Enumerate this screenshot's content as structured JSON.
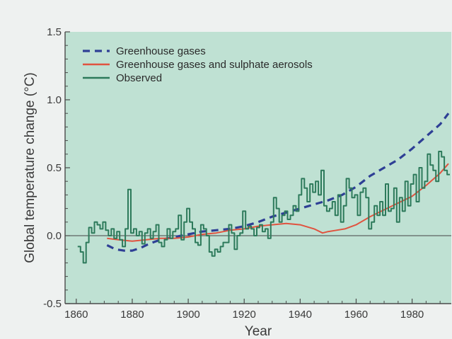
{
  "colors": {
    "plot_bg": "#bfe1d3",
    "page_bg": "#eef1f0",
    "greenhouse": "#2e3f95",
    "aerosols": "#e0533f",
    "observed": "#2d7a5b",
    "axis": "#4a4a4a"
  },
  "chart_data": {
    "type": "line",
    "title": "",
    "xlabel": "Year",
    "ylabel": "Global temperature change (°C)",
    "xlim": [
      1856,
      1994
    ],
    "ylim": [
      -0.5,
      1.5
    ],
    "xticks": [
      {
        "value": 1860,
        "label": "1860"
      },
      {
        "value": 1880,
        "label": "1880"
      },
      {
        "value": 1900,
        "label": "1900"
      },
      {
        "value": 1920,
        "label": "1920"
      },
      {
        "value": 1940,
        "label": "1940"
      },
      {
        "value": 1960,
        "label": "1960"
      },
      {
        "value": 1980,
        "label": "1980"
      }
    ],
    "yticks": [
      {
        "value": -0.5,
        "label": "-0.5"
      },
      {
        "value": 0.0,
        "label": "0.0"
      },
      {
        "value": 0.5,
        "label": "0.5"
      },
      {
        "value": 1.0,
        "label": "1.0"
      },
      {
        "value": 1.5,
        "label": "1.5"
      }
    ],
    "zero_line": 0.0,
    "grid": false,
    "legend_position": "top-left",
    "series": [
      {
        "name": "Greenhouse gases",
        "style": "dashed",
        "x": [
          1871,
          1874,
          1877,
          1880,
          1883,
          1886,
          1890,
          1895,
          1900,
          1905,
          1910,
          1915,
          1920,
          1925,
          1930,
          1935,
          1940,
          1945,
          1950,
          1955,
          1960,
          1965,
          1970,
          1975,
          1980,
          1985,
          1990,
          1993
        ],
        "values": [
          -0.07,
          -0.1,
          -0.11,
          -0.11,
          -0.09,
          -0.06,
          -0.03,
          -0.01,
          0.01,
          0.03,
          0.04,
          0.05,
          0.07,
          0.1,
          0.14,
          0.17,
          0.2,
          0.23,
          0.26,
          0.3,
          0.36,
          0.44,
          0.5,
          0.56,
          0.64,
          0.73,
          0.82,
          0.9
        ]
      },
      {
        "name": "Greenhouse gases and sulphate aerosols",
        "style": "solid",
        "x": [
          1871,
          1875,
          1880,
          1885,
          1890,
          1895,
          1900,
          1905,
          1910,
          1915,
          1920,
          1925,
          1930,
          1935,
          1940,
          1945,
          1948,
          1950,
          1953,
          1956,
          1960,
          1965,
          1970,
          1975,
          1980,
          1985,
          1990,
          1993
        ],
        "values": [
          -0.02,
          -0.03,
          -0.04,
          -0.03,
          -0.02,
          -0.02,
          -0.01,
          0.01,
          0.02,
          0.04,
          0.05,
          0.07,
          0.08,
          0.09,
          0.08,
          0.05,
          0.02,
          0.03,
          0.04,
          0.05,
          0.08,
          0.14,
          0.19,
          0.24,
          0.29,
          0.37,
          0.46,
          0.53
        ]
      },
      {
        "name": "Observed",
        "style": "steps",
        "x": [
          1861,
          1862,
          1863,
          1864,
          1865,
          1866,
          1867,
          1868,
          1869,
          1870,
          1871,
          1872,
          1873,
          1874,
          1875,
          1876,
          1877,
          1878,
          1879,
          1880,
          1881,
          1882,
          1883,
          1884,
          1885,
          1886,
          1887,
          1888,
          1889,
          1890,
          1891,
          1892,
          1893,
          1894,
          1895,
          1896,
          1897,
          1898,
          1899,
          1900,
          1901,
          1902,
          1903,
          1904,
          1905,
          1906,
          1907,
          1908,
          1909,
          1910,
          1911,
          1912,
          1913,
          1914,
          1915,
          1916,
          1917,
          1918,
          1919,
          1920,
          1921,
          1922,
          1923,
          1924,
          1925,
          1926,
          1927,
          1928,
          1929,
          1930,
          1931,
          1932,
          1933,
          1934,
          1935,
          1936,
          1937,
          1938,
          1939,
          1940,
          1941,
          1942,
          1943,
          1944,
          1945,
          1946,
          1947,
          1948,
          1949,
          1950,
          1951,
          1952,
          1953,
          1954,
          1955,
          1956,
          1957,
          1958,
          1959,
          1960,
          1961,
          1962,
          1963,
          1964,
          1965,
          1966,
          1967,
          1968,
          1969,
          1970,
          1971,
          1972,
          1973,
          1974,
          1975,
          1976,
          1977,
          1978,
          1979,
          1980,
          1981,
          1982,
          1983,
          1984,
          1985,
          1986,
          1987,
          1988,
          1989,
          1990,
          1991,
          1992,
          1993
        ],
        "values": [
          -0.08,
          -0.12,
          -0.2,
          -0.05,
          0.06,
          0.02,
          0.1,
          0.08,
          0.05,
          0.1,
          0.04,
          0.0,
          0.05,
          -0.02,
          0.03,
          -0.03,
          -0.08,
          0.05,
          0.34,
          0.02,
          0.05,
          0.0,
          0.03,
          -0.06,
          0.02,
          0.05,
          -0.02,
          0.03,
          0.08,
          -0.05,
          -0.08,
          -0.03,
          0.05,
          -0.02,
          0.03,
          0.05,
          0.15,
          -0.03,
          0.1,
          0.2,
          0.1,
          0.05,
          -0.05,
          -0.07,
          0.08,
          0.05,
          0.0,
          -0.12,
          -0.15,
          -0.1,
          -0.12,
          -0.08,
          -0.05,
          -0.05,
          0.08,
          0.02,
          -0.1,
          0.0,
          0.02,
          0.18,
          0.05,
          0.07,
          0.05,
          0.0,
          0.06,
          0.08,
          0.03,
          0.05,
          -0.02,
          0.1,
          0.28,
          0.2,
          0.1,
          0.15,
          0.18,
          0.12,
          0.15,
          0.22,
          0.18,
          0.3,
          0.42,
          0.35,
          0.25,
          0.38,
          0.32,
          0.4,
          0.3,
          0.48,
          0.22,
          0.18,
          0.2,
          0.25,
          0.15,
          0.3,
          0.1,
          0.22,
          0.42,
          0.35,
          0.28,
          0.3,
          0.15,
          0.32,
          0.35,
          0.28,
          0.05,
          0.1,
          0.22,
          0.15,
          0.25,
          0.15,
          0.38,
          0.18,
          0.2,
          0.35,
          0.1,
          0.28,
          0.18,
          0.4,
          0.22,
          0.38,
          0.45,
          0.25,
          0.5,
          0.35,
          0.4,
          0.6,
          0.52,
          0.48,
          0.4,
          0.62,
          0.58,
          0.48,
          0.45
        ]
      }
    ]
  }
}
